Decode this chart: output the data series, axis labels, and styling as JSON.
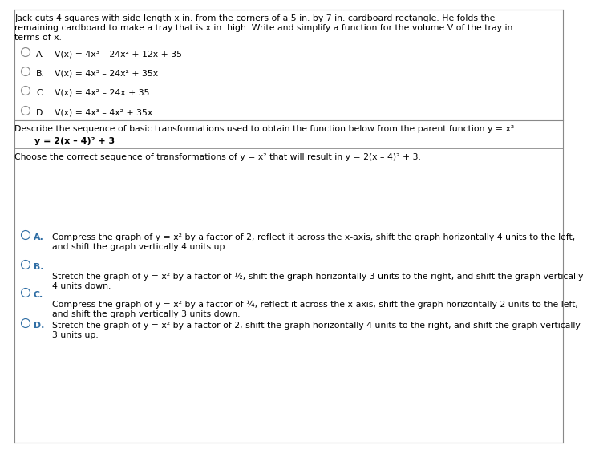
{
  "bg_color": "#ffffff",
  "text_color": "#000000",
  "gray_color": "#888888",
  "blue_color": "#2e6da4",
  "q1_prompt_line1": "Jack cuts 4 squares with side length x in. from the corners of a 5 in. by 7 in. cardboard rectangle. He folds the",
  "q1_prompt_line2": "remaining cardboard to make a tray that is x in. high. Write and simplify a function for the volume V of the tray in",
  "q1_prompt_line3": "terms of x.",
  "q1_options": [
    [
      "A.",
      "V(x) = 4x³ – 24x² + 12x + 35"
    ],
    [
      "B.",
      "V(x) = 4x³ – 24x² + 35x"
    ],
    [
      "C.",
      "V(x) = 4x² – 24x + 35"
    ],
    [
      "D.",
      "V(x) = 4x³ – 4x² + 35x"
    ]
  ],
  "q2_prompt": "Describe the sequence of basic transformations used to obtain the function below from the parent function y = x².",
  "q2_function": "y = 2(x – 4)² + 3",
  "q2_subprompt": "Choose the correct sequence of transformations of y = x² that will result in y = 2(x – 4)² + 3.",
  "q2_options": [
    [
      "A.",
      "Compress the graph of y = x² by a factor of 2, reflect it across the x-axis, shift the graph horizontally 4 units to the left,",
      "and shift the graph vertically 4 units up"
    ],
    [
      "B.",
      "Stretch the graph of y = x² by a factor of ½, shift the graph horizontally 3 units to the right, and shift the graph vertically",
      "4 units down."
    ],
    [
      "C.",
      "Compress the graph of y = x² by a factor of ¼, reflect it across the x-axis, shift the graph horizontally 2 units to the left,",
      "and shift the graph vertically 3 units down."
    ],
    [
      "D.",
      "Stretch the graph of y = x² by a factor of 2, shift the graph horizontally 4 units to the right, and shift the graph vertically",
      "3 units up."
    ]
  ],
  "fs": 7.8,
  "fs_func": 8.0,
  "lpad": 8,
  "rpad": 692,
  "circle_r": 5.5
}
